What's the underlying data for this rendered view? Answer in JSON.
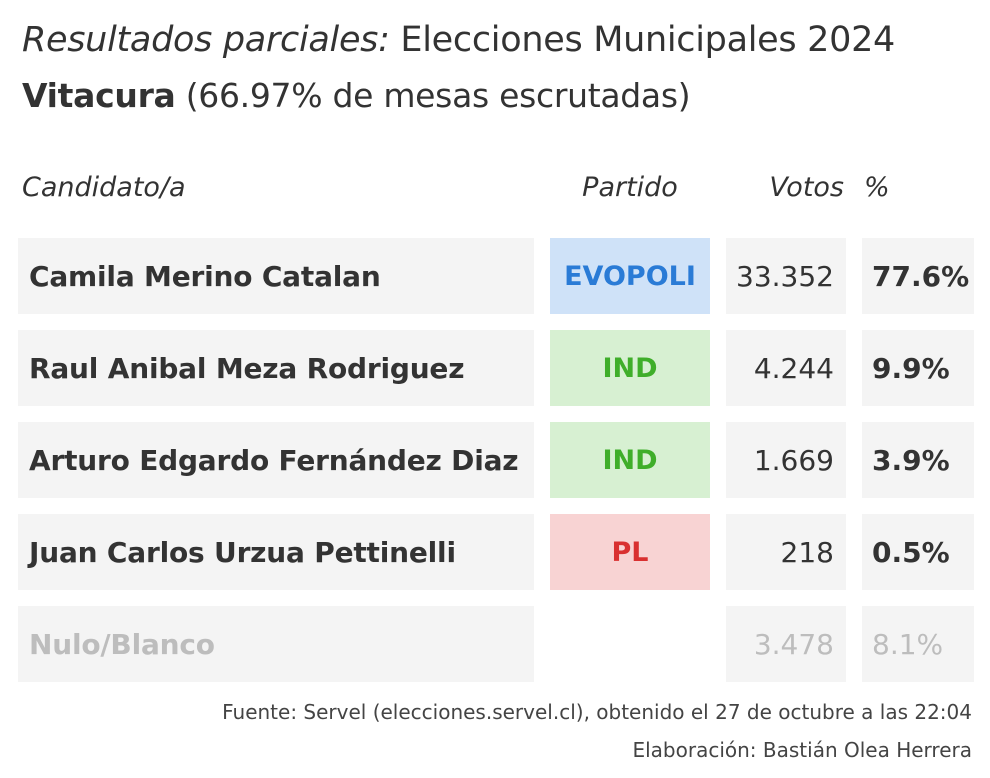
{
  "title": {
    "italic_part": "Resultados parciales:",
    "rest": " Elecciones Municipales 2024",
    "commune": "Vitacura",
    "progress": " (66.97% de mesas escrutadas)"
  },
  "table": {
    "headers": {
      "candidate": "Candidato/a",
      "party": "Partido",
      "votes": "Votos",
      "pct": "%"
    },
    "rows": [
      {
        "candidate": "Camila Merino Catalan",
        "party": "EVOPOLI",
        "party_bg": "#cfe2f8",
        "party_color": "#2a7bd6",
        "votes": "33.352",
        "pct": "77.6%"
      },
      {
        "candidate": "Raul Anibal Meza Rodriguez",
        "party": "IND",
        "party_bg": "#d7f0d2",
        "party_color": "#3fae2a",
        "votes": "4.244",
        "pct": "9.9%"
      },
      {
        "candidate": "Arturo Edgardo Fernández Diaz",
        "party": "IND",
        "party_bg": "#d7f0d2",
        "party_color": "#3fae2a",
        "votes": "1.669",
        "pct": "3.9%"
      },
      {
        "candidate": "Juan Carlos Urzua Pettinelli",
        "party": "PL",
        "party_bg": "#f8d3d3",
        "party_color": "#d93030",
        "votes": "218",
        "pct": "0.5%"
      },
      {
        "candidate": "Nulo/Blanco",
        "party": "",
        "votes": "3.478",
        "pct": "8.1%"
      }
    ]
  },
  "footer": {
    "source": "Fuente: Servel (elecciones.servel.cl), obtenido el 27 de octubre a las 22:04",
    "credit": "Elaboración: Bastián Olea Herrera"
  }
}
